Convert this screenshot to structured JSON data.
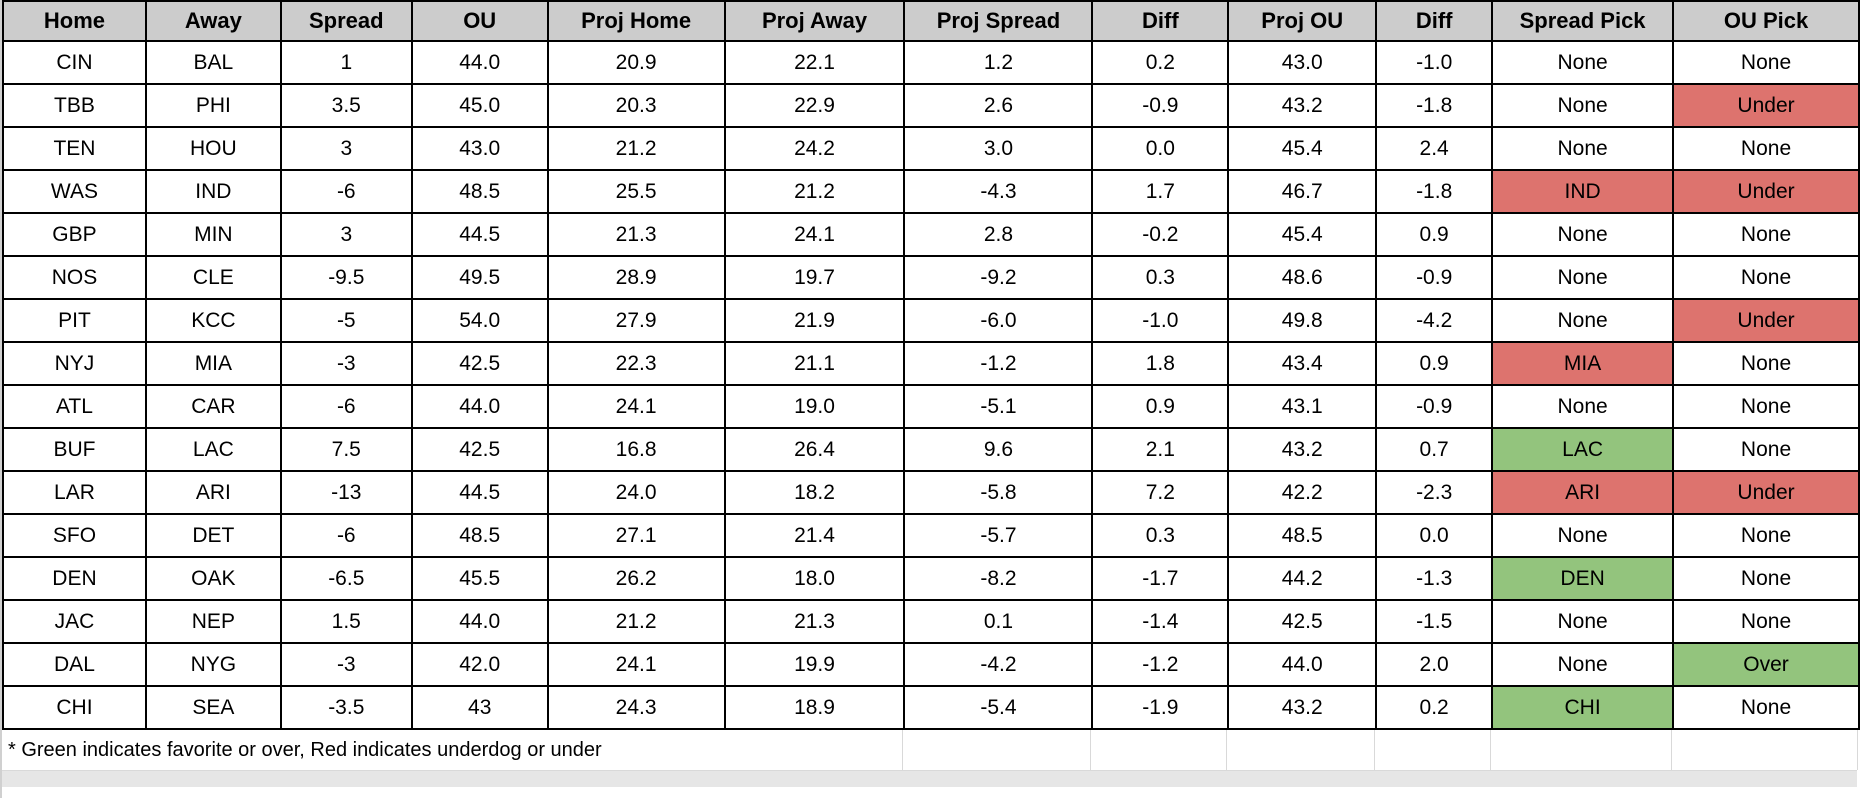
{
  "colors": {
    "header_bg": "#cccccc",
    "pick_green": "#93c47d",
    "pick_red": "#dd736e",
    "grid_light": "#d9d9d9",
    "empty_bg": "#e6e6e6"
  },
  "table": {
    "columns": [
      {
        "key": "home",
        "label": "Home"
      },
      {
        "key": "away",
        "label": "Away"
      },
      {
        "key": "spread",
        "label": "Spread"
      },
      {
        "key": "ou",
        "label": "OU"
      },
      {
        "key": "proj_home",
        "label": "Proj Home"
      },
      {
        "key": "proj_away",
        "label": "Proj Away"
      },
      {
        "key": "proj_spread",
        "label": "Proj Spread"
      },
      {
        "key": "spread_diff",
        "label": "Diff"
      },
      {
        "key": "proj_ou",
        "label": "Proj OU"
      },
      {
        "key": "ou_diff",
        "label": "Diff"
      },
      {
        "key": "spread_pick",
        "label": "Spread Pick"
      },
      {
        "key": "ou_pick",
        "label": "OU Pick"
      }
    ],
    "rows": [
      {
        "home": "CIN",
        "away": "BAL",
        "spread": "1",
        "ou": "44.0",
        "proj_home": "20.9",
        "proj_away": "22.1",
        "proj_spread": "1.2",
        "spread_diff": "0.2",
        "proj_ou": "43.0",
        "ou_diff": "-1.0",
        "spread_pick": "None",
        "spread_pick_color": "none",
        "ou_pick": "None",
        "ou_pick_color": "none"
      },
      {
        "home": "TBB",
        "away": "PHI",
        "spread": "3.5",
        "ou": "45.0",
        "proj_home": "20.3",
        "proj_away": "22.9",
        "proj_spread": "2.6",
        "spread_diff": "-0.9",
        "proj_ou": "43.2",
        "ou_diff": "-1.8",
        "spread_pick": "None",
        "spread_pick_color": "none",
        "ou_pick": "Under",
        "ou_pick_color": "red"
      },
      {
        "home": "TEN",
        "away": "HOU",
        "spread": "3",
        "ou": "43.0",
        "proj_home": "21.2",
        "proj_away": "24.2",
        "proj_spread": "3.0",
        "spread_diff": "0.0",
        "proj_ou": "45.4",
        "ou_diff": "2.4",
        "spread_pick": "None",
        "spread_pick_color": "none",
        "ou_pick": "None",
        "ou_pick_color": "none"
      },
      {
        "home": "WAS",
        "away": "IND",
        "spread": "-6",
        "ou": "48.5",
        "proj_home": "25.5",
        "proj_away": "21.2",
        "proj_spread": "-4.3",
        "spread_diff": "1.7",
        "proj_ou": "46.7",
        "ou_diff": "-1.8",
        "spread_pick": "IND",
        "spread_pick_color": "red",
        "ou_pick": "Under",
        "ou_pick_color": "red"
      },
      {
        "home": "GBP",
        "away": "MIN",
        "spread": "3",
        "ou": "44.5",
        "proj_home": "21.3",
        "proj_away": "24.1",
        "proj_spread": "2.8",
        "spread_diff": "-0.2",
        "proj_ou": "45.4",
        "ou_diff": "0.9",
        "spread_pick": "None",
        "spread_pick_color": "none",
        "ou_pick": "None",
        "ou_pick_color": "none"
      },
      {
        "home": "NOS",
        "away": "CLE",
        "spread": "-9.5",
        "ou": "49.5",
        "proj_home": "28.9",
        "proj_away": "19.7",
        "proj_spread": "-9.2",
        "spread_diff": "0.3",
        "proj_ou": "48.6",
        "ou_diff": "-0.9",
        "spread_pick": "None",
        "spread_pick_color": "none",
        "ou_pick": "None",
        "ou_pick_color": "none"
      },
      {
        "home": "PIT",
        "away": "KCC",
        "spread": "-5",
        "ou": "54.0",
        "proj_home": "27.9",
        "proj_away": "21.9",
        "proj_spread": "-6.0",
        "spread_diff": "-1.0",
        "proj_ou": "49.8",
        "ou_diff": "-4.2",
        "spread_pick": "None",
        "spread_pick_color": "none",
        "ou_pick": "Under",
        "ou_pick_color": "red"
      },
      {
        "home": "NYJ",
        "away": "MIA",
        "spread": "-3",
        "ou": "42.5",
        "proj_home": "22.3",
        "proj_away": "21.1",
        "proj_spread": "-1.2",
        "spread_diff": "1.8",
        "proj_ou": "43.4",
        "ou_diff": "0.9",
        "spread_pick": "MIA",
        "spread_pick_color": "red",
        "ou_pick": "None",
        "ou_pick_color": "none"
      },
      {
        "home": "ATL",
        "away": "CAR",
        "spread": "-6",
        "ou": "44.0",
        "proj_home": "24.1",
        "proj_away": "19.0",
        "proj_spread": "-5.1",
        "spread_diff": "0.9",
        "proj_ou": "43.1",
        "ou_diff": "-0.9",
        "spread_pick": "None",
        "spread_pick_color": "none",
        "ou_pick": "None",
        "ou_pick_color": "none"
      },
      {
        "home": "BUF",
        "away": "LAC",
        "spread": "7.5",
        "ou": "42.5",
        "proj_home": "16.8",
        "proj_away": "26.4",
        "proj_spread": "9.6",
        "spread_diff": "2.1",
        "proj_ou": "43.2",
        "ou_diff": "0.7",
        "spread_pick": "LAC",
        "spread_pick_color": "green",
        "ou_pick": "None",
        "ou_pick_color": "none"
      },
      {
        "home": "LAR",
        "away": "ARI",
        "spread": "-13",
        "ou": "44.5",
        "proj_home": "24.0",
        "proj_away": "18.2",
        "proj_spread": "-5.8",
        "spread_diff": "7.2",
        "proj_ou": "42.2",
        "ou_diff": "-2.3",
        "spread_pick": "ARI",
        "spread_pick_color": "red",
        "ou_pick": "Under",
        "ou_pick_color": "red"
      },
      {
        "home": "SFO",
        "away": "DET",
        "spread": "-6",
        "ou": "48.5",
        "proj_home": "27.1",
        "proj_away": "21.4",
        "proj_spread": "-5.7",
        "spread_diff": "0.3",
        "proj_ou": "48.5",
        "ou_diff": "0.0",
        "spread_pick": "None",
        "spread_pick_color": "none",
        "ou_pick": "None",
        "ou_pick_color": "none"
      },
      {
        "home": "DEN",
        "away": "OAK",
        "spread": "-6.5",
        "ou": "45.5",
        "proj_home": "26.2",
        "proj_away": "18.0",
        "proj_spread": "-8.2",
        "spread_diff": "-1.7",
        "proj_ou": "44.2",
        "ou_diff": "-1.3",
        "spread_pick": "DEN",
        "spread_pick_color": "green",
        "ou_pick": "None",
        "ou_pick_color": "none"
      },
      {
        "home": "JAC",
        "away": "NEP",
        "spread": "1.5",
        "ou": "44.0",
        "proj_home": "21.2",
        "proj_away": "21.3",
        "proj_spread": "0.1",
        "spread_diff": "-1.4",
        "proj_ou": "42.5",
        "ou_diff": "-1.5",
        "spread_pick": "None",
        "spread_pick_color": "none",
        "ou_pick": "None",
        "ou_pick_color": "none"
      },
      {
        "home": "DAL",
        "away": "NYG",
        "spread": "-3",
        "ou": "42.0",
        "proj_home": "24.1",
        "proj_away": "19.9",
        "proj_spread": "-4.2",
        "spread_diff": "-1.2",
        "proj_ou": "44.0",
        "ou_diff": "2.0",
        "spread_pick": "None",
        "spread_pick_color": "none",
        "ou_pick": "Over",
        "ou_pick_color": "green"
      },
      {
        "home": "CHI",
        "away": "SEA",
        "spread": "-3.5",
        "ou": "43",
        "proj_home": "24.3",
        "proj_away": "18.9",
        "proj_spread": "-5.4",
        "spread_diff": "-1.9",
        "proj_ou": "43.2",
        "ou_diff": "0.2",
        "spread_pick": "CHI",
        "spread_pick_color": "green",
        "ou_pick": "None",
        "ou_pick_color": "none"
      }
    ],
    "footnote": "* Green indicates favorite or over, Red indicates underdog or under"
  }
}
